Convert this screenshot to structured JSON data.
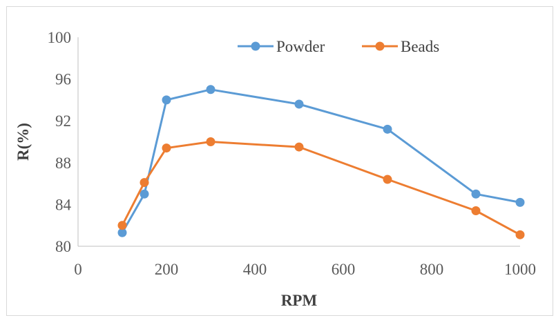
{
  "chart_data": {
    "type": "line",
    "title": "",
    "xlabel": "RPM",
    "ylabel": "R(%)",
    "xlim": [
      0,
      1000
    ],
    "ylim": [
      80,
      100
    ],
    "xticks": [
      "0",
      "200",
      "400",
      "600",
      "800",
      "1000"
    ],
    "yticks": [
      "80",
      "84",
      "88",
      "92",
      "96",
      "100"
    ],
    "x": [
      100,
      150,
      200,
      300,
      500,
      700,
      900,
      1000
    ],
    "series": [
      {
        "name": "Powder",
        "color": "#5b9bd5",
        "values": [
          81.3,
          85.0,
          94.0,
          95.0,
          93.6,
          91.2,
          85.0,
          84.2
        ]
      },
      {
        "name": "Beads",
        "color": "#ed7d31",
        "values": [
          82.0,
          86.1,
          89.4,
          90.0,
          89.5,
          86.4,
          83.4,
          81.1
        ]
      }
    ],
    "grid": false,
    "legend": "top-right"
  }
}
